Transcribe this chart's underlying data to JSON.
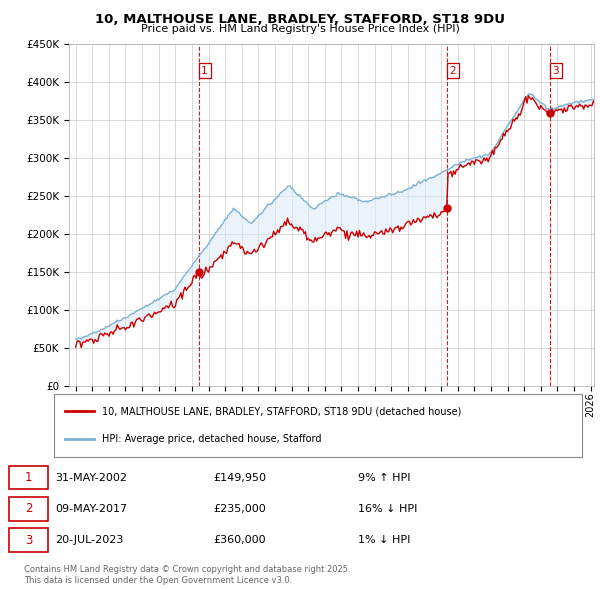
{
  "title": "10, MALTHOUSE LANE, BRADLEY, STAFFORD, ST18 9DU",
  "subtitle": "Price paid vs. HM Land Registry's House Price Index (HPI)",
  "legend_line1": "10, MALTHOUSE LANE, BRADLEY, STAFFORD, ST18 9DU (detached house)",
  "legend_line2": "HPI: Average price, detached house, Stafford",
  "table_rows": [
    {
      "num": "1",
      "date": "31-MAY-2002",
      "price": "£149,950",
      "hpi": "9% ↑ HPI"
    },
    {
      "num": "2",
      "date": "09-MAY-2017",
      "price": "£235,000",
      "hpi": "16% ↓ HPI"
    },
    {
      "num": "3",
      "date": "20-JUL-2023",
      "price": "£360,000",
      "hpi": "1% ↓ HPI"
    }
  ],
  "footer1": "Contains HM Land Registry data © Crown copyright and database right 2025.",
  "footer2": "This data is licensed under the Open Government Licence v3.0.",
  "sale_color": "#cc0000",
  "hpi_color": "#7ab0d4",
  "hpi_fill_color": "#daeaf5",
  "grid_color": "#cccccc",
  "background_color": "#ffffff",
  "ylim": [
    0,
    450000
  ],
  "yticks": [
    0,
    50000,
    100000,
    150000,
    200000,
    250000,
    300000,
    350000,
    400000,
    450000
  ],
  "sale_dates_num": [
    2002.412,
    2017.354,
    2023.548
  ],
  "sale_prices": [
    149950,
    235000,
    360000
  ],
  "marker_labels": [
    "1",
    "2",
    "3"
  ]
}
